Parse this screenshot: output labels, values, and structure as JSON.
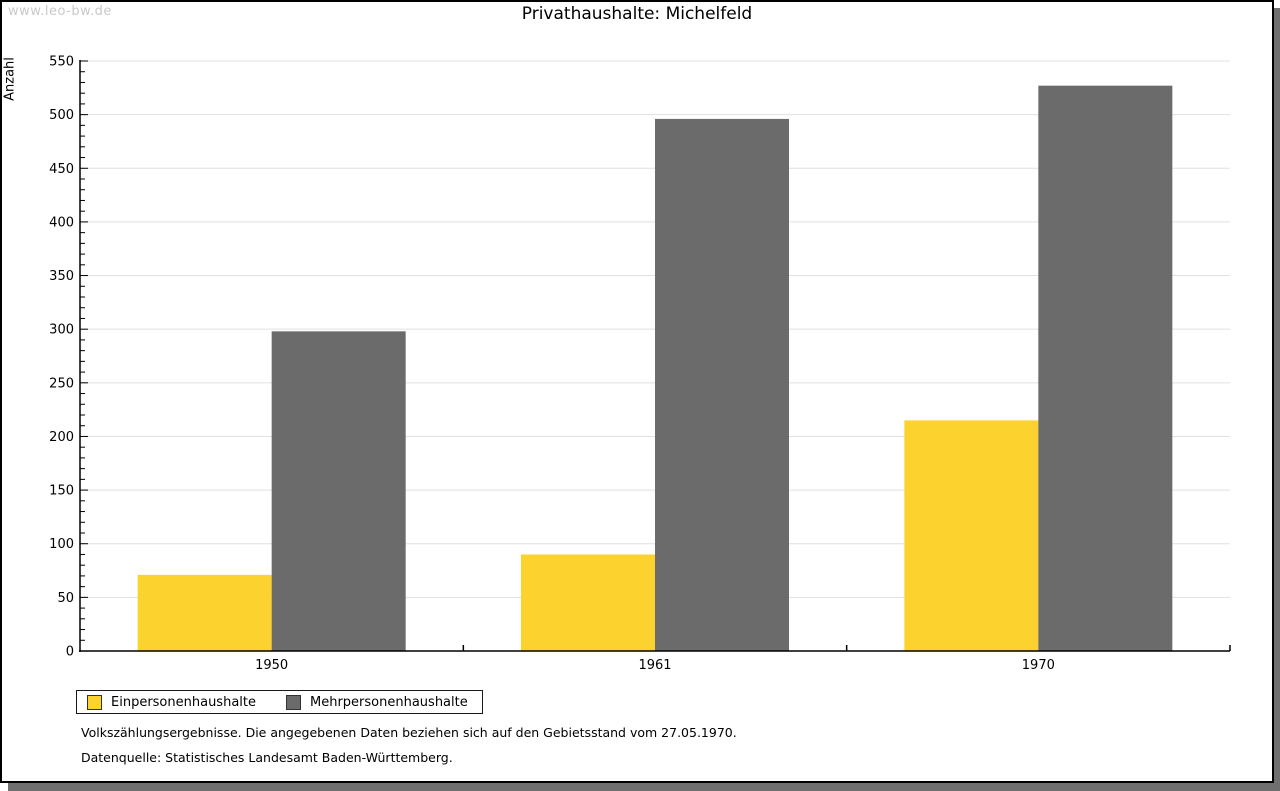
{
  "watermark": "www.leo-bw.de",
  "title": "Privathaushalte: Michelfeld",
  "chart_data": {
    "type": "bar",
    "title": "Privathaushalte: Michelfeld",
    "xlabel": "",
    "ylabel": "Anzahl",
    "categories": [
      "1950",
      "1961",
      "1970"
    ],
    "series": [
      {
        "name": "Einpersonenhaushalte",
        "color": "#fcd32e",
        "values": [
          71,
          90,
          215
        ]
      },
      {
        "name": "Mehrpersonenhaushalte",
        "color": "#6b6b6b",
        "values": [
          298,
          496,
          527
        ]
      }
    ],
    "ylim": [
      0,
      550
    ],
    "y_major_step": 50,
    "y_minor_step": 10,
    "grid": true,
    "gridline_color": "#e0e0e0",
    "legend_position": "bottom-left"
  },
  "footnotes": [
    "Volkszählungsergebnisse. Die angegebenen Daten beziehen sich auf den Gebietsstand vom 27.05.1970.",
    "Datenquelle: Statistisches Landesamt Baden-Württemberg."
  ]
}
